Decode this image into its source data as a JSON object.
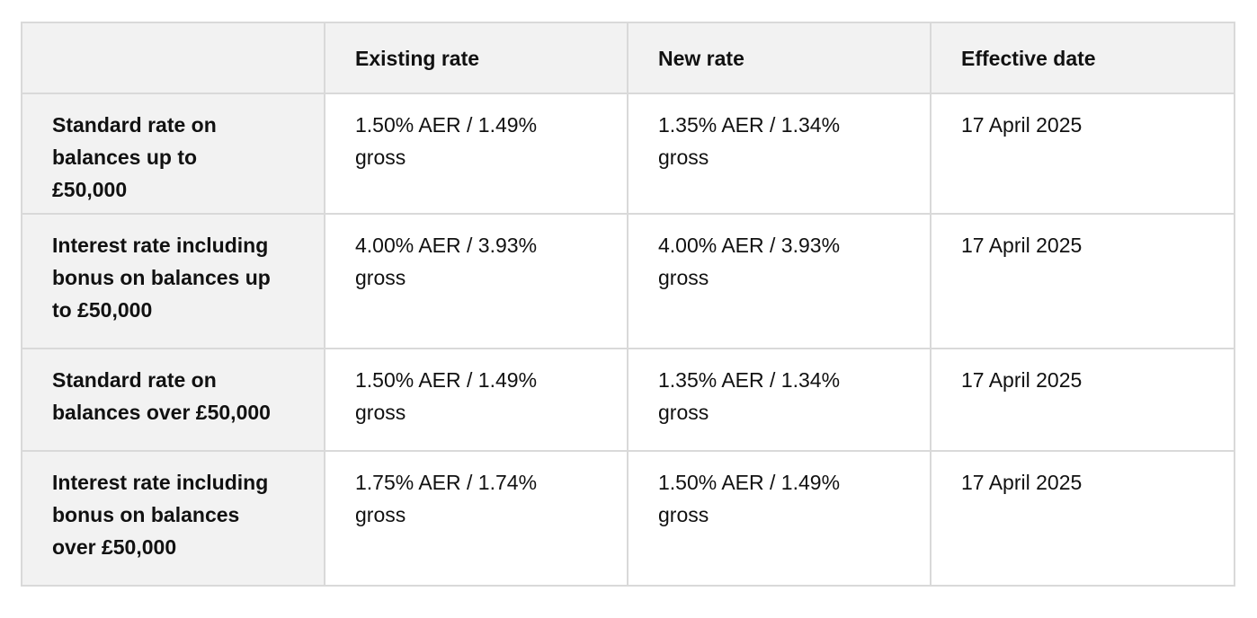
{
  "table": {
    "headers": [
      "",
      "Existing rate",
      "New rate",
      "Effective date"
    ],
    "rows": [
      {
        "label": "Standard rate on balances up to £50,000",
        "existing_rate": "1.50% AER / 1.49% gross",
        "new_rate": "1.35% AER / 1.34% gross",
        "effective_date": "17 April 2025"
      },
      {
        "label": "Interest rate including bonus on balances up to £50,000",
        "existing_rate": "4.00% AER / 3.93% gross",
        "new_rate": "4.00% AER / 3.93% gross",
        "effective_date": "17 April 2025"
      },
      {
        "label": "Standard rate on balances over £50,000",
        "existing_rate": "1.50% AER / 1.49% gross",
        "new_rate": "1.35% AER / 1.34% gross",
        "effective_date": "17 April 2025"
      },
      {
        "label": "Interest rate including bonus on balances over £50,000",
        "existing_rate": "1.75% AER / 1.74% gross",
        "new_rate": "1.50% AER / 1.49% gross",
        "effective_date": "17 April 2025"
      }
    ]
  }
}
